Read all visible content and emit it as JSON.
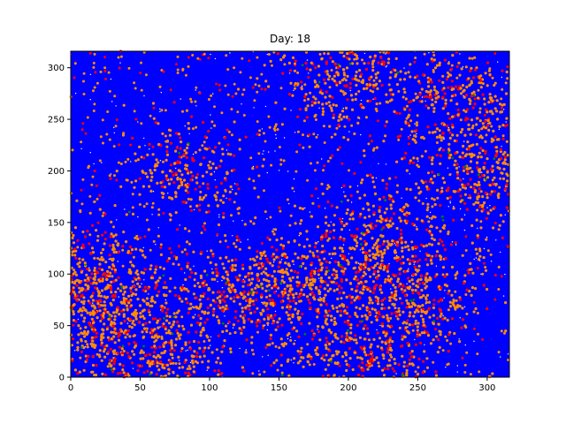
{
  "chart_data": {
    "type": "scatter",
    "title": "Day: 18",
    "xlabel": "",
    "ylabel": "",
    "xlim": [
      0,
      316
    ],
    "ylim": [
      0,
      316
    ],
    "x_ticks": [
      0,
      50,
      100,
      150,
      200,
      250,
      300
    ],
    "y_ticks": [
      0,
      50,
      100,
      150,
      200,
      250,
      300
    ],
    "grid": false,
    "colors": {
      "background": "#0000ff",
      "susceptible": "#0000ff",
      "exposed": "#ff8c00",
      "infected": "#ff0000",
      "recovered": "#008000",
      "empty": "#ffffff"
    },
    "hotspots": [
      {
        "x": 20,
        "y": 60,
        "weight": 1.0
      },
      {
        "x": 8,
        "y": 95,
        "weight": 0.7
      },
      {
        "x": 300,
        "y": 200,
        "weight": 0.9
      },
      {
        "x": 210,
        "y": 25,
        "weight": 0.8
      },
      {
        "x": 215,
        "y": 130,
        "weight": 0.7
      },
      {
        "x": 160,
        "y": 90,
        "weight": 0.6
      },
      {
        "x": 200,
        "y": 290,
        "weight": 0.6
      },
      {
        "x": 80,
        "y": 200,
        "weight": 0.4
      },
      {
        "x": 60,
        "y": 20,
        "weight": 0.6
      },
      {
        "x": 250,
        "y": 80,
        "weight": 0.5
      },
      {
        "x": 120,
        "y": 80,
        "weight": 0.4
      },
      {
        "x": 280,
        "y": 270,
        "weight": 0.4
      }
    ]
  }
}
